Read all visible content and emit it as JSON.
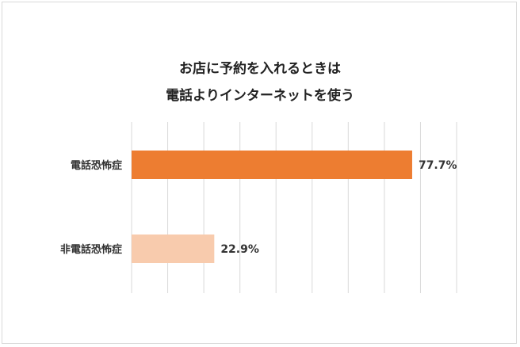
{
  "chart_data": {
    "type": "bar",
    "orientation": "horizontal",
    "title_lines": [
      "お店に予約を入れるときは",
      "電話よりインターネットを使う"
    ],
    "categories": [
      "電話恐怖症",
      "非電話恐怖症"
    ],
    "values": [
      77.7,
      22.9
    ],
    "value_labels": [
      "77.7%",
      "22.9%"
    ],
    "xlim": [
      0,
      90
    ],
    "grid": "vertical",
    "legend": "none",
    "colors": [
      "#ed7d31",
      "#f8cbad"
    ]
  }
}
